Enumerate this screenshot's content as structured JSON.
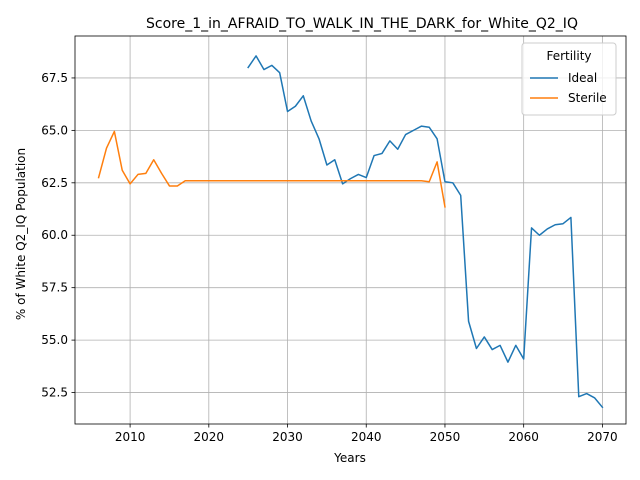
{
  "chart_data": {
    "type": "line",
    "title": "Score_1_in_AFRAID_TO_WALK_IN_THE_DARK_for_White_Q2_IQ",
    "xlabel": "Years",
    "ylabel": "% of White Q2_IQ Population",
    "xlim": [
      2003,
      2073
    ],
    "ylim": [
      51.0,
      69.5
    ],
    "xticks": [
      2010,
      2020,
      2030,
      2040,
      2050,
      2060,
      2070
    ],
    "yticks": [
      52.5,
      55.0,
      57.5,
      60.0,
      62.5,
      65.0,
      67.5
    ],
    "ytick_labels": [
      "52.5",
      "55.0",
      "57.5",
      "60.0",
      "62.5",
      "65.0",
      "67.5"
    ],
    "grid": true,
    "legend": {
      "title": "Fertility",
      "placement": "top-right"
    },
    "series": [
      {
        "name": "Ideal",
        "color": "#1f77b4",
        "x": [
          2025,
          2026,
          2027,
          2028,
          2029,
          2030,
          2031,
          2032,
          2033,
          2034,
          2035,
          2036,
          2037,
          2038,
          2039,
          2040,
          2041,
          2042,
          2043,
          2044,
          2045,
          2046,
          2047,
          2048,
          2049,
          2050,
          2051,
          2052,
          2053,
          2054,
          2055,
          2056,
          2057,
          2058,
          2059,
          2060,
          2061,
          2062,
          2063,
          2064,
          2065,
          2066,
          2067,
          2068,
          2069,
          2070
        ],
        "y": [
          68.0,
          68.55,
          67.9,
          68.1,
          67.75,
          65.9,
          66.15,
          66.65,
          65.45,
          64.6,
          63.35,
          63.6,
          62.45,
          62.7,
          62.9,
          62.75,
          63.8,
          63.9,
          64.5,
          64.1,
          64.8,
          65.0,
          65.2,
          65.15,
          64.6,
          62.55,
          62.5,
          61.9,
          55.9,
          54.6,
          55.15,
          54.55,
          54.75,
          53.95,
          54.75,
          54.1,
          60.35,
          60.0,
          60.3,
          60.5,
          60.55,
          60.85,
          52.3,
          52.45,
          52.25,
          51.8
        ]
      },
      {
        "name": "Sterile",
        "color": "#ff7f0e",
        "x": [
          2006,
          2007,
          2008,
          2009,
          2010,
          2011,
          2012,
          2013,
          2014,
          2015,
          2016,
          2017,
          2018,
          2019,
          2020,
          2021,
          2022,
          2023,
          2024,
          2025,
          2026,
          2027,
          2028,
          2029,
          2030,
          2031,
          2032,
          2033,
          2034,
          2035,
          2036,
          2037,
          2038,
          2039,
          2040,
          2041,
          2042,
          2043,
          2044,
          2045,
          2046,
          2047,
          2048,
          2049,
          2050
        ],
        "y": [
          62.75,
          64.15,
          64.95,
          63.1,
          62.45,
          62.9,
          62.95,
          63.6,
          62.95,
          62.35,
          62.35,
          62.6,
          62.6,
          62.6,
          62.6,
          62.6,
          62.6,
          62.6,
          62.6,
          62.6,
          62.6,
          62.6,
          62.6,
          62.6,
          62.6,
          62.6,
          62.6,
          62.6,
          62.6,
          62.6,
          62.6,
          62.6,
          62.6,
          62.6,
          62.6,
          62.6,
          62.6,
          62.6,
          62.6,
          62.6,
          62.6,
          62.6,
          62.55,
          63.5,
          61.35
        ]
      }
    ]
  }
}
